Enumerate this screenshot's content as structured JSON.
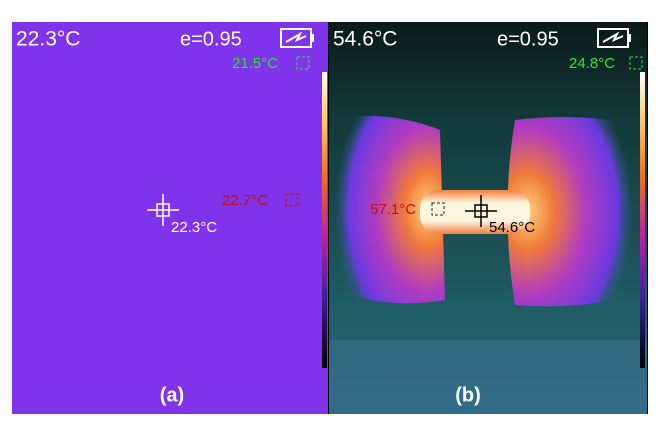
{
  "panels": [
    {
      "reading": "22.3°C",
      "emissivity": "e=0.95",
      "min_spot": "21.5°C",
      "max_spot": "22.7°C",
      "center_spot": "22.3°C",
      "caption": "(a)"
    },
    {
      "reading": "54.6°C",
      "emissivity": "e=0.95",
      "min_spot": "24.8°C",
      "max_spot": "57.1°C",
      "center_spot": "54.6°C",
      "caption": "(b)"
    }
  ]
}
